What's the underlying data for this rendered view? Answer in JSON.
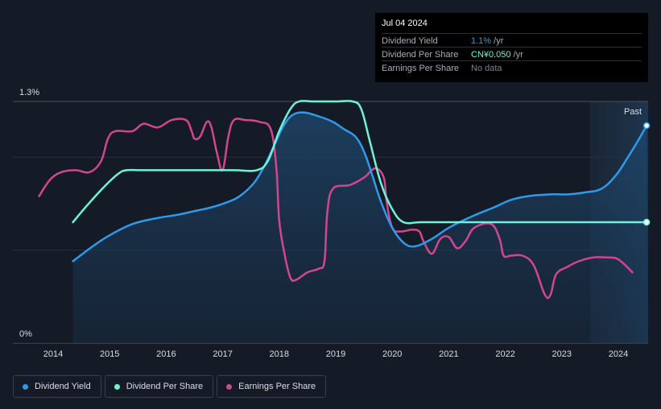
{
  "tooltip": {
    "date": "Jul 04 2024",
    "rows": [
      {
        "label": "Dividend Yield",
        "value": "1.1%",
        "unit": " /yr"
      },
      {
        "label": "Dividend Per Share",
        "value": "CN¥0.050",
        "unit": " /yr"
      },
      {
        "label": "Earnings Per Share",
        "value": "No data",
        "unit": ""
      }
    ]
  },
  "legend": [
    {
      "label": "Dividend Yield",
      "color": "#2e9bea"
    },
    {
      "label": "Dividend Per Share",
      "color": "#6ff3d8"
    },
    {
      "label": "Earnings Per Share",
      "color": "#d2468f"
    }
  ],
  "chart_data": {
    "type": "line",
    "title": "",
    "y_axis_labels": [
      "1.3%",
      "0%"
    ],
    "ylim": [
      0,
      1.3
    ],
    "xlim": [
      2013.75,
      2024.5
    ],
    "x_ticks": [
      2014,
      2015,
      2016,
      2017,
      2018,
      2019,
      2020,
      2021,
      2022,
      2023,
      2024
    ],
    "past_label": "Past",
    "past_start": 2023.5,
    "series": [
      {
        "name": "Dividend Yield",
        "color": "#2e9bea",
        "filled": true,
        "points": [
          [
            2014.35,
            0.44
          ],
          [
            2014.7,
            0.52
          ],
          [
            2015.0,
            0.58
          ],
          [
            2015.4,
            0.64
          ],
          [
            2015.8,
            0.67
          ],
          [
            2016.2,
            0.69
          ],
          [
            2016.5,
            0.71
          ],
          [
            2016.8,
            0.73
          ],
          [
            2017.1,
            0.76
          ],
          [
            2017.3,
            0.79
          ],
          [
            2017.55,
            0.86
          ],
          [
            2017.75,
            0.96
          ],
          [
            2017.95,
            1.09
          ],
          [
            2018.1,
            1.18
          ],
          [
            2018.25,
            1.23
          ],
          [
            2018.45,
            1.24
          ],
          [
            2018.7,
            1.22
          ],
          [
            2018.95,
            1.19
          ],
          [
            2019.15,
            1.15
          ],
          [
            2019.35,
            1.11
          ],
          [
            2019.5,
            1.03
          ],
          [
            2019.65,
            0.9
          ],
          [
            2019.8,
            0.76
          ],
          [
            2020.0,
            0.62
          ],
          [
            2020.2,
            0.54
          ],
          [
            2020.4,
            0.52
          ],
          [
            2020.7,
            0.56
          ],
          [
            2021.0,
            0.62
          ],
          [
            2021.4,
            0.68
          ],
          [
            2021.8,
            0.73
          ],
          [
            2022.1,
            0.77
          ],
          [
            2022.4,
            0.79
          ],
          [
            2022.8,
            0.8
          ],
          [
            2023.1,
            0.8
          ],
          [
            2023.4,
            0.81
          ],
          [
            2023.7,
            0.83
          ],
          [
            2023.95,
            0.9
          ],
          [
            2024.15,
            0.99
          ],
          [
            2024.35,
            1.09
          ],
          [
            2024.5,
            1.17
          ]
        ]
      },
      {
        "name": "Dividend Per Share",
        "color": "#6ff3d8",
        "filled": false,
        "points": [
          [
            2014.35,
            0.65
          ],
          [
            2014.6,
            0.74
          ],
          [
            2014.9,
            0.84
          ],
          [
            2015.15,
            0.91
          ],
          [
            2015.3,
            0.93
          ],
          [
            2015.6,
            0.93
          ],
          [
            2016.5,
            0.93
          ],
          [
            2017.2,
            0.93
          ],
          [
            2017.6,
            0.93
          ],
          [
            2017.8,
            0.98
          ],
          [
            2018.0,
            1.14
          ],
          [
            2018.2,
            1.26
          ],
          [
            2018.35,
            1.3
          ],
          [
            2018.6,
            1.3
          ],
          [
            2019.0,
            1.3
          ],
          [
            2019.3,
            1.3
          ],
          [
            2019.45,
            1.26
          ],
          [
            2019.6,
            1.09
          ],
          [
            2019.8,
            0.86
          ],
          [
            2020.0,
            0.72
          ],
          [
            2020.2,
            0.65
          ],
          [
            2020.5,
            0.65
          ],
          [
            2021.0,
            0.65
          ],
          [
            2022.0,
            0.65
          ],
          [
            2023.0,
            0.65
          ],
          [
            2024.0,
            0.65
          ],
          [
            2024.5,
            0.65
          ]
        ]
      },
      {
        "name": "Earnings Per Share",
        "color": "#d2468f",
        "filled": false,
        "points": [
          [
            2013.75,
            0.79
          ],
          [
            2013.95,
            0.88
          ],
          [
            2014.15,
            0.92
          ],
          [
            2014.4,
            0.93
          ],
          [
            2014.65,
            0.92
          ],
          [
            2014.85,
            0.98
          ],
          [
            2014.97,
            1.1
          ],
          [
            2015.1,
            1.14
          ],
          [
            2015.4,
            1.14
          ],
          [
            2015.6,
            1.18
          ],
          [
            2015.85,
            1.16
          ],
          [
            2016.1,
            1.2
          ],
          [
            2016.35,
            1.2
          ],
          [
            2016.45,
            1.14
          ],
          [
            2016.5,
            1.1
          ],
          [
            2016.6,
            1.11
          ],
          [
            2016.72,
            1.19
          ],
          [
            2016.8,
            1.16
          ],
          [
            2016.9,
            1.02
          ],
          [
            2017.0,
            0.93
          ],
          [
            2017.1,
            1.11
          ],
          [
            2017.2,
            1.2
          ],
          [
            2017.4,
            1.2
          ],
          [
            2017.65,
            1.19
          ],
          [
            2017.85,
            1.15
          ],
          [
            2017.95,
            0.94
          ],
          [
            2018.0,
            0.66
          ],
          [
            2018.1,
            0.47
          ],
          [
            2018.2,
            0.35
          ],
          [
            2018.3,
            0.34
          ],
          [
            2018.5,
            0.38
          ],
          [
            2018.7,
            0.4
          ],
          [
            2018.8,
            0.44
          ],
          [
            2018.85,
            0.7
          ],
          [
            2018.95,
            0.83
          ],
          [
            2019.25,
            0.85
          ],
          [
            2019.5,
            0.89
          ],
          [
            2019.7,
            0.94
          ],
          [
            2019.85,
            0.89
          ],
          [
            2019.9,
            0.76
          ],
          [
            2020.0,
            0.62
          ],
          [
            2020.15,
            0.6
          ],
          [
            2020.35,
            0.61
          ],
          [
            2020.48,
            0.6
          ],
          [
            2020.55,
            0.55
          ],
          [
            2020.7,
            0.48
          ],
          [
            2020.85,
            0.56
          ],
          [
            2021.0,
            0.57
          ],
          [
            2021.15,
            0.51
          ],
          [
            2021.3,
            0.55
          ],
          [
            2021.45,
            0.62
          ],
          [
            2021.75,
            0.64
          ],
          [
            2021.9,
            0.56
          ],
          [
            2021.97,
            0.47
          ],
          [
            2022.1,
            0.47
          ],
          [
            2022.3,
            0.47
          ],
          [
            2022.5,
            0.42
          ],
          [
            2022.7,
            0.26
          ],
          [
            2022.8,
            0.26
          ],
          [
            2022.9,
            0.37
          ],
          [
            2023.1,
            0.41
          ],
          [
            2023.3,
            0.44
          ],
          [
            2023.55,
            0.46
          ],
          [
            2023.8,
            0.46
          ],
          [
            2024.0,
            0.45
          ],
          [
            2024.25,
            0.38
          ]
        ]
      }
    ]
  }
}
